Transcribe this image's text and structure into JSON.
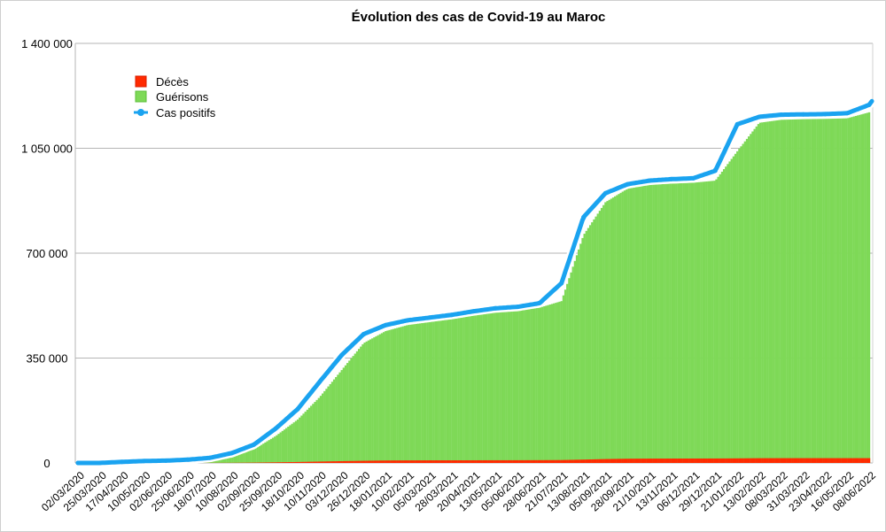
{
  "chart_data": {
    "type": "bar",
    "title": "Évolution des cas de Covid-19 au Maroc",
    "xlabel": "",
    "ylabel": "",
    "ylim": [
      0,
      1400000
    ],
    "grid": true,
    "legend_position": "top-left",
    "y_ticks": [
      {
        "value": 0,
        "label": "0"
      },
      {
        "value": 350000,
        "label": "350 000"
      },
      {
        "value": 700000,
        "label": "700 000"
      },
      {
        "value": 1050000,
        "label": "1 050 000"
      },
      {
        "value": 1400000,
        "label": "1 400 000"
      }
    ],
    "categories": [
      "02/03/2020",
      "25/03/2020",
      "17/04/2020",
      "10/05/2020",
      "02/06/2020",
      "25/06/2020",
      "18/07/2020",
      "10/08/2020",
      "02/09/2020",
      "25/09/2020",
      "18/10/2020",
      "10/11/2020",
      "03/12/2020",
      "26/12/2020",
      "18/01/2021",
      "10/02/2021",
      "05/03/2021",
      "28/03/2021",
      "20/04/2021",
      "13/05/2021",
      "05/06/2021",
      "28/06/2021",
      "21/07/2021",
      "13/08/2021",
      "05/09/2021",
      "28/09/2021",
      "21/10/2021",
      "13/11/2021",
      "06/12/2021",
      "29/12/2021",
      "21/01/2022",
      "13/02/2022",
      "08/03/2022",
      "31/03/2022",
      "23/04/2022",
      "16/05/2022",
      "08/06/2022"
    ],
    "series": [
      {
        "name": "Décès",
        "type": "bar",
        "color": "#ff2a00",
        "values": [
          0,
          5,
          150,
          190,
          210,
          240,
          280,
          500,
          1100,
          2100,
          3200,
          4600,
          6000,
          7200,
          8200,
          8500,
          8700,
          8800,
          8900,
          9000,
          9100,
          9300,
          9700,
          11200,
          13000,
          14100,
          14500,
          14700,
          14800,
          14900,
          15300,
          15900,
          16000,
          16060,
          16070,
          16070,
          16075
        ]
      },
      {
        "name": "Guérisons",
        "type": "bar",
        "color": "#7ed957",
        "values": [
          0,
          0,
          500,
          3000,
          5000,
          8000,
          12000,
          25000,
          45000,
          90000,
          145000,
          220000,
          310000,
          400000,
          440000,
          460000,
          470000,
          480000,
          492000,
          502000,
          510000,
          518000,
          540000,
          760000,
          870000,
          915000,
          928000,
          932000,
          935000,
          942000,
          1040000,
          1135000,
          1145000,
          1147000,
          1148000,
          1150000,
          1170000
        ]
      },
      {
        "name": "Cas positifs",
        "type": "line",
        "color": "#1aa3f0",
        "values": [
          0,
          100,
          3500,
          6400,
          7800,
          11000,
          17000,
          33000,
          61000,
          115000,
          180000,
          271000,
          360000,
          430000,
          460000,
          476000,
          485000,
          494000,
          506000,
          516000,
          521000,
          533000,
          600000,
          820000,
          900000,
          930000,
          942000,
          947000,
          950000,
          975000,
          1130000,
          1155000,
          1162000,
          1163000,
          1164000,
          1167000,
          1195000
        ]
      }
    ]
  }
}
